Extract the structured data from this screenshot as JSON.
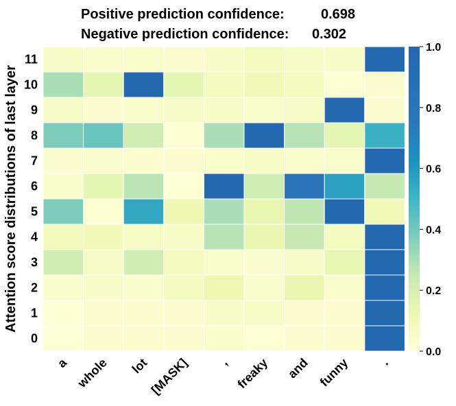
{
  "header": {
    "positive_label": "Positive prediction confidence:",
    "positive_value": "0.698",
    "negative_label": "Negative prediction confidence:",
    "negative_value": "0.302"
  },
  "chart_data": {
    "type": "heatmap",
    "title": "",
    "xlabel": "",
    "ylabel": "Attention score distributions of last layer",
    "x_categories": [
      "a",
      "whole",
      "lot",
      "[MASK]",
      ",",
      "freaky",
      "and",
      "funny",
      "."
    ],
    "y_categories": [
      "11",
      "10",
      "9",
      "8",
      "7",
      "6",
      "5",
      "4",
      "3",
      "2",
      "1",
      "0"
    ],
    "values": [
      [
        0.05,
        0.04,
        0.04,
        0.03,
        0.05,
        0.08,
        0.06,
        0.05,
        1.0
      ],
      [
        0.3,
        0.15,
        1.0,
        0.15,
        0.08,
        0.1,
        0.08,
        0.02,
        0.03
      ],
      [
        0.06,
        0.03,
        0.04,
        0.06,
        0.05,
        0.04,
        0.06,
        1.0,
        0.03
      ],
      [
        0.38,
        0.42,
        0.22,
        0.02,
        0.3,
        1.0,
        0.28,
        0.15,
        0.52
      ],
      [
        0.03,
        0.03,
        0.03,
        0.03,
        0.04,
        0.06,
        0.04,
        0.04,
        1.0
      ],
      [
        0.04,
        0.15,
        0.27,
        0.02,
        1.0,
        0.22,
        0.85,
        0.57,
        0.25
      ],
      [
        0.38,
        0.02,
        0.55,
        0.12,
        0.3,
        0.14,
        0.26,
        1.0,
        0.1
      ],
      [
        0.09,
        0.1,
        0.07,
        0.05,
        0.28,
        0.13,
        0.24,
        0.08,
        1.0
      ],
      [
        0.22,
        0.06,
        0.22,
        0.08,
        0.04,
        0.03,
        0.05,
        0.14,
        1.0
      ],
      [
        0.04,
        0.05,
        0.04,
        0.08,
        0.12,
        0.04,
        0.13,
        0.04,
        1.0
      ],
      [
        0.02,
        0.03,
        0.03,
        0.03,
        0.05,
        0.06,
        0.03,
        0.03,
        1.0
      ],
      [
        0.02,
        0.03,
        0.03,
        0.03,
        0.04,
        0.02,
        0.03,
        0.03,
        1.0
      ]
    ],
    "vmin": 0.0,
    "vmax": 1.0,
    "colormap": "YlGnBu",
    "colorbar_ticks": [
      "0.0",
      "0.2",
      "0.4",
      "0.6",
      "0.8",
      "1.0"
    ]
  }
}
